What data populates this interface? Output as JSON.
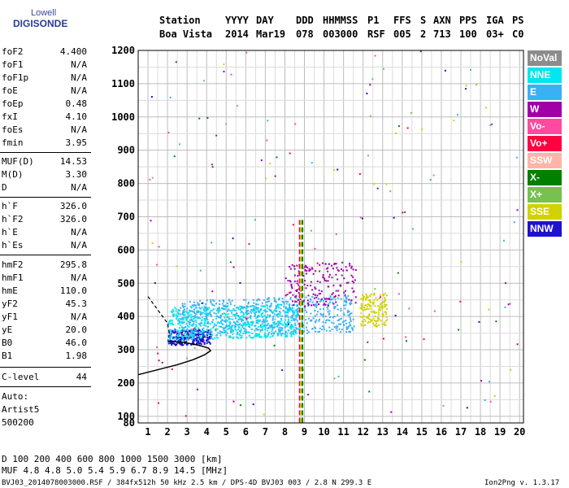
{
  "logo": {
    "line1": "Lowell",
    "line2": "DIGISONDE"
  },
  "header": {
    "labels": [
      "Station",
      "YYYY",
      "DAY",
      "DDD",
      "HHMMSS",
      "P1",
      "FFS",
      "S",
      "AXN",
      "PPS",
      "IGA",
      "PS"
    ],
    "values": [
      "Boa Vista",
      "2014",
      "Mar19",
      "078",
      "003000",
      "RSF",
      "005",
      "2",
      "713",
      "100",
      "03+",
      "C0"
    ]
  },
  "params_group1": [
    {
      "k": "foF2",
      "v": "4.400"
    },
    {
      "k": "foF1",
      "v": "N/A"
    },
    {
      "k": "foF1p",
      "v": "N/A"
    },
    {
      "k": "foE",
      "v": "N/A"
    },
    {
      "k": "foEp",
      "v": "0.48"
    },
    {
      "k": "fxI",
      "v": "4.10"
    },
    {
      "k": "foEs",
      "v": "N/A"
    },
    {
      "k": "fmin",
      "v": "3.95"
    }
  ],
  "params_group2": [
    {
      "k": "MUF(D)",
      "v": "14.53"
    },
    {
      "k": "M(D)",
      "v": "3.30"
    },
    {
      "k": "D",
      "v": "N/A"
    }
  ],
  "params_group3": [
    {
      "k": "h`F",
      "v": "326.0"
    },
    {
      "k": "h`F2",
      "v": "326.0"
    },
    {
      "k": "h`E",
      "v": "N/A"
    },
    {
      "k": "h`Es",
      "v": "N/A"
    }
  ],
  "params_group4": [
    {
      "k": "hmF2",
      "v": "295.8"
    },
    {
      "k": "hmF1",
      "v": "N/A"
    },
    {
      "k": "hmE",
      "v": "110.0"
    },
    {
      "k": "yF2",
      "v": "45.3"
    },
    {
      "k": "yF1",
      "v": "N/A"
    },
    {
      "k": "yE",
      "v": "20.0"
    },
    {
      "k": "B0",
      "v": "46.0"
    },
    {
      "k": "B1",
      "v": "1.98"
    }
  ],
  "clevel": {
    "k": "C-level",
    "v": "44"
  },
  "auto": [
    "Auto:",
    "Artist5",
    "500200"
  ],
  "legend": [
    {
      "label": "NoVal",
      "color": "#8c8c8c"
    },
    {
      "label": "NNE",
      "color": "#00e6f0"
    },
    {
      "label": "E",
      "color": "#3ab0f5"
    },
    {
      "label": "W",
      "color": "#a000a8"
    },
    {
      "label": "Vo-",
      "color": "#ff4aa0"
    },
    {
      "label": "Vo+",
      "color": "#ff0040"
    },
    {
      "label": "SSW",
      "color": "#ffb4a8"
    },
    {
      "label": "X-",
      "color": "#008000"
    },
    {
      "label": "X+",
      "color": "#78c050"
    },
    {
      "label": "SSE",
      "color": "#d2d200"
    },
    {
      "label": "NNW",
      "color": "#2010d0"
    }
  ],
  "footer": {
    "row1": "D     100  200  400  600  800 1000 1500 3000 [km]",
    "row2": "MUF   4.8  4.8  5.0  5.4  5.9  6.7  8.9 14.5 [MHz]",
    "file": "BVJ03_2014078003000.RSF / 384fx512h 50 kHz 2.5 km / DPS-4D BVJ03 003 / 2.8 N 299.3 E",
    "version": "Ion2Png v. 1.3.17"
  },
  "chart_data": {
    "type": "scatter",
    "title": "",
    "xlabel": "",
    "ylabel": "",
    "xlim": [
      0.5,
      20.2
    ],
    "ylim": [
      80,
      1200
    ],
    "x_ticks": [
      "1",
      "2",
      "3",
      "4",
      "5",
      "6",
      "7",
      "8",
      "9",
      "10",
      "11",
      "12",
      "13",
      "14",
      "15",
      "16",
      "17",
      "18",
      "19",
      "20"
    ],
    "y_ticks": [
      "80",
      "100",
      "200",
      "300",
      "400",
      "500",
      "600",
      "700",
      "800",
      "900",
      "1000",
      "1100",
      "1200"
    ],
    "trace_clusters": [
      {
        "name": "NNW",
        "color": "#2010d0",
        "x": [
          2.0,
          4.2
        ],
        "y": [
          315,
          360
        ]
      },
      {
        "name": "NNE",
        "color": "#00e6f0",
        "x": [
          2.0,
          8.8
        ],
        "y": [
          330,
          430
        ]
      },
      {
        "name": "E",
        "color": "#3ab0f5",
        "x": [
          2.5,
          11.5
        ],
        "y": [
          340,
          450
        ]
      },
      {
        "name": "W",
        "color": "#a000a8",
        "x": [
          8.0,
          11.6
        ],
        "y": [
          430,
          560
        ]
      },
      {
        "name": "SSE",
        "color": "#d2d200",
        "x": [
          11.8,
          13.2
        ],
        "y": [
          370,
          470
        ]
      }
    ],
    "profile_curve": {
      "color": "#000000",
      "points": [
        [
          0.5,
          225
        ],
        [
          1.5,
          240
        ],
        [
          2.5,
          255
        ],
        [
          3.3,
          270
        ],
        [
          3.9,
          285
        ],
        [
          4.2,
          297
        ],
        [
          4.1,
          305
        ],
        [
          3.5,
          315
        ],
        [
          2.8,
          322
        ],
        [
          2.0,
          326
        ]
      ]
    },
    "dashed_curve": {
      "color": "#000000",
      "points": [
        [
          1.0,
          460
        ],
        [
          1.5,
          420
        ],
        [
          2.0,
          380
        ],
        [
          2.1,
          345
        ]
      ]
    },
    "vertical_markers": [
      {
        "x": 8.76,
        "color": "#ff0040"
      },
      {
        "x": 8.82,
        "color": "#d2d200"
      },
      {
        "x": 8.9,
        "color": "#008000"
      }
    ]
  }
}
